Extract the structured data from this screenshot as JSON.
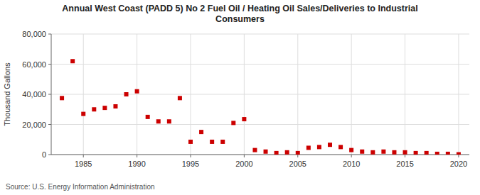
{
  "chart_data": {
    "type": "scatter",
    "title": "Annual West Coast (PADD 5) No 2 Fuel Oil / Heating Oil Sales/Deliveries to Industrial\nConsumers",
    "y_label": "Thousand Gallons",
    "annotations": [
      "Source: U.S. Energy Information Administration"
    ],
    "x": [
      1983,
      1984,
      1985,
      1986,
      1987,
      1988,
      1989,
      1990,
      1991,
      1992,
      1993,
      1994,
      1995,
      1996,
      1997,
      1998,
      1999,
      2000,
      2001,
      2002,
      2003,
      2004,
      2005,
      2006,
      2007,
      2008,
      2009,
      2010,
      2011,
      2012,
      2013,
      2014,
      2015,
      2016,
      2017,
      2018,
      2019,
      2020
    ],
    "values": [
      37500,
      62000,
      27000,
      30000,
      31000,
      32000,
      40000,
      42000,
      25000,
      22000,
      22000,
      37500,
      8500,
      15000,
      8500,
      8500,
      21000,
      23500,
      3000,
      2000,
      1000,
      1500,
      1000,
      4500,
      5000,
      6500,
      5000,
      3000,
      2000,
      1500,
      2000,
      1500,
      1500,
      1000,
      1000,
      500,
      500,
      200
    ],
    "color": "#CC0000",
    "marker": "square",
    "xlim": [
      1982,
      2021
    ],
    "ylim": [
      0,
      80000
    ],
    "xticks": [
      1985,
      1990,
      1995,
      2000,
      2005,
      2010,
      2015,
      2020
    ],
    "yticks": [
      0,
      {
        "value": 20000,
        "label": "20,000"
      },
      {
        "value": 40000,
        "label": "40,000"
      },
      {
        "value": 60000,
        "label": "60,000"
      },
      {
        "value": 80000,
        "label": "80,000"
      }
    ],
    "grid": true
  }
}
